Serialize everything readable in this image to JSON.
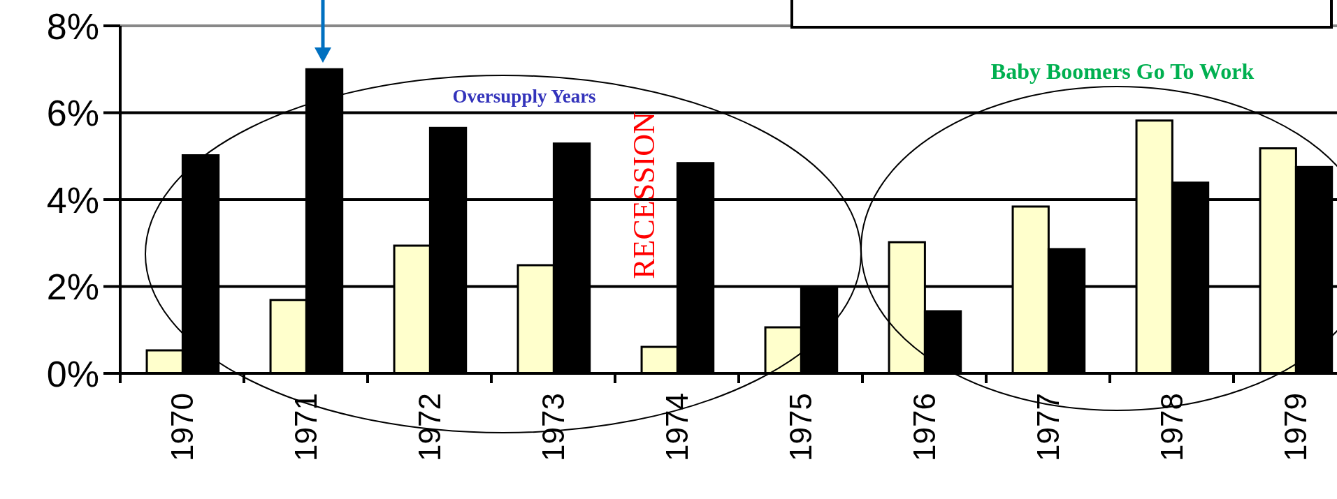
{
  "chart_data": {
    "type": "bar",
    "categories": [
      "1970",
      "1971",
      "1972",
      "1973",
      "1974",
      "1975",
      "1976",
      "1977",
      "1978",
      "1979"
    ],
    "series": [
      {
        "color": "#ffffcc",
        "values": [
          0.53,
          1.69,
          2.94,
          2.49,
          0.61,
          1.06,
          3.02,
          3.84,
          5.82,
          5.18
        ]
      },
      {
        "color": "#000000",
        "values": [
          5.02,
          7.0,
          5.65,
          5.29,
          4.84,
          1.96,
          1.43,
          2.86,
          4.39,
          4.75
        ]
      }
    ],
    "ylim": [
      0,
      8
    ],
    "yticks": [
      {
        "value": 0,
        "label": "0%"
      },
      {
        "value": 2,
        "label": "2%"
      },
      {
        "value": 4,
        "label": "4%"
      },
      {
        "value": 6,
        "label": "6%"
      },
      {
        "value": 8,
        "label": "8%"
      }
    ],
    "grid": "y",
    "annotations": [
      "Oversupply Years",
      "RECESSION",
      "Baby Boomers Go To Work"
    ]
  }
}
